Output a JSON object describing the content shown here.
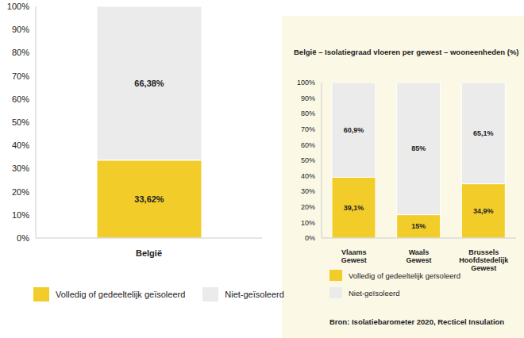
{
  "chart_data": [
    {
      "type": "bar",
      "categories": [
        "België"
      ],
      "series": [
        {
          "name": "Volledig of gedeeltelijk geïsoleerd",
          "color": "#f2cd2a",
          "values": [
            33.62
          ],
          "value_labels": [
            "33,62%"
          ]
        },
        {
          "name": "Niet-geïsoleerd",
          "color": "#ebebeb",
          "values": [
            66.38
          ],
          "value_labels": [
            "66,38%"
          ]
        }
      ],
      "stacked": true,
      "data_labels": true,
      "grid": false,
      "legend": "bottom",
      "ylim": [
        0,
        100
      ],
      "yticks": [
        {
          "value": 0,
          "label": "0%"
        },
        {
          "value": 10,
          "label": "10%"
        },
        {
          "value": 20,
          "label": "20%"
        },
        {
          "value": 30,
          "label": "30%"
        },
        {
          "value": 40,
          "label": "40%"
        },
        {
          "value": 50,
          "label": "50%"
        },
        {
          "value": 60,
          "label": "60%"
        },
        {
          "value": 70,
          "label": "70%"
        },
        {
          "value": 80,
          "label": "80%"
        },
        {
          "value": 90,
          "label": "90%"
        },
        {
          "value": 100,
          "label": "100%"
        }
      ]
    },
    {
      "type": "bar",
      "title": "België – Isolatiegraad vloeren per gewest – wooneenheden (%)",
      "categories": [
        "Vlaams Gewest",
        "Waals Gewest",
        "Brussels Hoofdstedelijk Gewest"
      ],
      "series": [
        {
          "name": "Volledig of gedeeltelijk geïsoleerd",
          "color": "#f2cd2a",
          "values": [
            39.1,
            15,
            34.9
          ],
          "value_labels": [
            "39,1%",
            "15%",
            "34,9%"
          ]
        },
        {
          "name": "Niet-geïsoleerd",
          "color": "#ebebeb",
          "values": [
            60.9,
            85,
            65.1
          ],
          "value_labels": [
            "60,9%",
            "85%",
            "65,1%"
          ]
        }
      ],
      "stacked": true,
      "data_labels": true,
      "grid": false,
      "legend": "bottom",
      "ylim": [
        0,
        100
      ],
      "yticks": [
        {
          "value": 0,
          "label": "0%"
        },
        {
          "value": 10,
          "label": "10%"
        },
        {
          "value": 20,
          "label": "20%"
        },
        {
          "value": 30,
          "label": "30%"
        },
        {
          "value": 40,
          "label": "40%"
        },
        {
          "value": 50,
          "label": "50%"
        },
        {
          "value": 60,
          "label": "60%"
        },
        {
          "value": 70,
          "label": "70%"
        },
        {
          "value": 80,
          "label": "80%"
        },
        {
          "value": 90,
          "label": "90%"
        },
        {
          "value": 100,
          "label": "100%"
        }
      ],
      "annotation": "Bron: Isolatiebarometer 2020, Recticel Insulation"
    }
  ]
}
